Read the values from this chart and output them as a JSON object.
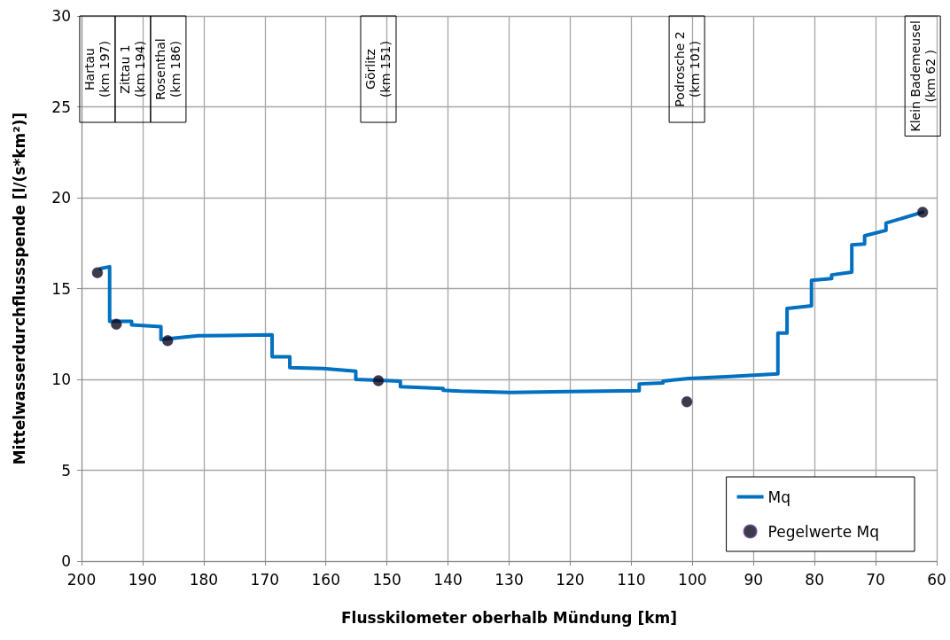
{
  "chart_data": {
    "type": "line",
    "xlabel": "Flusskilometer oberhalb Mündung [km]",
    "ylabel": "Mittelwasserdurchflussspende [l/(s*km²)]",
    "xlim": [
      200,
      60
    ],
    "xticks": [
      200,
      190,
      180,
      170,
      160,
      150,
      140,
      130,
      120,
      110,
      100,
      90,
      80,
      70,
      60
    ],
    "ylim": [
      0,
      30
    ],
    "yticks": [
      0,
      5,
      10,
      15,
      20,
      25,
      30
    ],
    "grid": true,
    "legend": "bottom right",
    "series": [
      {
        "name": "Mq",
        "color": "#0070c0",
        "marker": "none",
        "line_style": "solid",
        "x": [
          196.9,
          195.4,
          195.4,
          191.8,
          191.8,
          187.0,
          187.0,
          180.9,
          168.8,
          168.8,
          165.9,
          165.9,
          160.4,
          155.1,
          155.1,
          147.8,
          147.8,
          140.8,
          140.8,
          137.9,
          129.7,
          120.5,
          108.7,
          108.7,
          104.8,
          104.8,
          100.7,
          94.5,
          86.0,
          86.0,
          84.5,
          84.5,
          80.5,
          80.5,
          77.2,
          77.2,
          73.9,
          73.9,
          71.8,
          71.8,
          68.3,
          68.3,
          62.3
        ],
        "values": [
          16.1,
          16.2,
          13.2,
          13.2,
          13.0,
          12.9,
          12.2,
          12.4,
          12.45,
          11.25,
          11.25,
          10.65,
          10.6,
          10.45,
          10.0,
          9.9,
          9.6,
          9.5,
          9.4,
          9.35,
          9.28,
          9.33,
          9.38,
          9.75,
          9.8,
          9.9,
          10.05,
          10.15,
          10.3,
          12.55,
          12.55,
          13.9,
          14.05,
          15.45,
          15.55,
          15.75,
          15.9,
          17.4,
          17.45,
          17.9,
          18.2,
          18.6,
          19.2
        ]
      },
      {
        "name": "Pegelwerte Mq",
        "type": "scatter",
        "color": "#0a0a1e",
        "marker": "circle",
        "x": [
          197.4,
          194.3,
          185.9,
          151.4,
          100.9,
          62.3
        ],
        "values": [
          15.87,
          13.04,
          12.13,
          9.93,
          8.77,
          19.2
        ]
      }
    ],
    "annotations": [
      "Hartau\n(km 197)",
      "Zittau 1\n(km 194)",
      "Rosenthal\n(km 186)",
      "Görlitz\n(km 151)",
      "Podrosche 2\n(km 101)",
      "Klein Bademeusel\n(km 62 )"
    ]
  }
}
